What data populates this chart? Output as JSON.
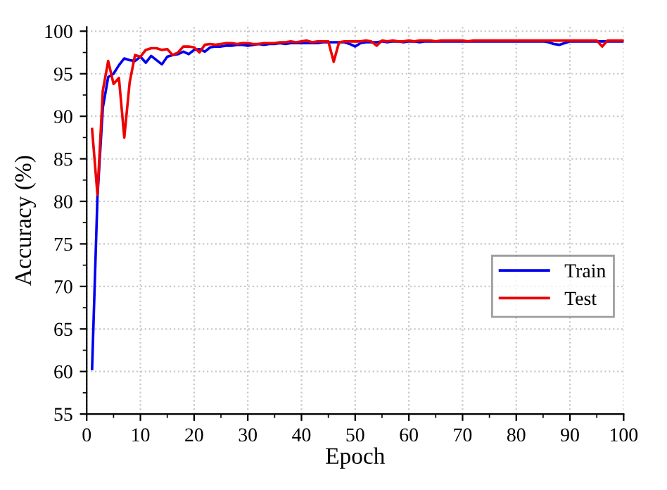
{
  "chart_data": {
    "type": "line",
    "xlabel": "Epoch",
    "ylabel": "Accuracy (%)",
    "x": [
      1,
      2,
      3,
      4,
      5,
      6,
      7,
      8,
      9,
      10,
      11,
      12,
      13,
      14,
      15,
      16,
      17,
      18,
      19,
      20,
      21,
      22,
      23,
      24,
      25,
      26,
      27,
      28,
      29,
      30,
      31,
      32,
      33,
      34,
      35,
      36,
      37,
      38,
      39,
      40,
      41,
      42,
      43,
      44,
      45,
      46,
      47,
      48,
      49,
      50,
      51,
      52,
      53,
      54,
      55,
      56,
      57,
      58,
      59,
      60,
      61,
      62,
      63,
      64,
      65,
      66,
      67,
      68,
      69,
      70,
      71,
      72,
      73,
      74,
      75,
      76,
      77,
      78,
      79,
      80,
      81,
      82,
      83,
      84,
      85,
      86,
      87,
      88,
      89,
      90,
      91,
      92,
      93,
      94,
      95,
      96,
      97,
      98,
      99,
      100
    ],
    "series": [
      {
        "name": "Train",
        "color": "#0000ee",
        "values": [
          60.3,
          80.5,
          91.0,
          94.6,
          95.0,
          96.0,
          96.8,
          96.6,
          96.5,
          97.0,
          96.3,
          97.1,
          96.6,
          96.1,
          97.0,
          97.2,
          97.3,
          97.6,
          97.3,
          97.8,
          97.9,
          97.6,
          98.1,
          98.2,
          98.2,
          98.3,
          98.3,
          98.4,
          98.4,
          98.3,
          98.4,
          98.5,
          98.4,
          98.5,
          98.5,
          98.6,
          98.5,
          98.6,
          98.6,
          98.6,
          98.6,
          98.6,
          98.6,
          98.7,
          98.7,
          98.7,
          98.7,
          98.7,
          98.5,
          98.2,
          98.6,
          98.7,
          98.7,
          98.7,
          98.8,
          98.7,
          98.8,
          98.8,
          98.7,
          98.8,
          98.8,
          98.7,
          98.8,
          98.8,
          98.8,
          98.8,
          98.8,
          98.8,
          98.8,
          98.8,
          98.8,
          98.8,
          98.8,
          98.8,
          98.8,
          98.8,
          98.8,
          98.8,
          98.8,
          98.8,
          98.8,
          98.8,
          98.8,
          98.8,
          98.8,
          98.7,
          98.5,
          98.4,
          98.6,
          98.8,
          98.8,
          98.8,
          98.8,
          98.8,
          98.8,
          98.8,
          98.8,
          98.8,
          98.8,
          98.8
        ]
      },
      {
        "name": "Test",
        "color": "#ee0000",
        "values": [
          88.5,
          80.8,
          93.0,
          96.5,
          93.8,
          94.5,
          87.5,
          94.0,
          97.2,
          97.0,
          97.8,
          98.0,
          98.0,
          97.8,
          97.9,
          97.2,
          97.5,
          98.2,
          98.2,
          98.1,
          97.5,
          98.4,
          98.5,
          98.4,
          98.5,
          98.6,
          98.6,
          98.5,
          98.6,
          98.6,
          98.5,
          98.5,
          98.6,
          98.6,
          98.6,
          98.7,
          98.7,
          98.8,
          98.7,
          98.8,
          98.9,
          98.7,
          98.8,
          98.8,
          98.8,
          96.4,
          98.7,
          98.8,
          98.8,
          98.8,
          98.8,
          98.9,
          98.8,
          98.3,
          98.9,
          98.8,
          98.9,
          98.8,
          98.8,
          98.9,
          98.8,
          98.9,
          98.9,
          98.9,
          98.8,
          98.9,
          98.9,
          98.9,
          98.9,
          98.9,
          98.8,
          98.9,
          98.9,
          98.9,
          98.9,
          98.9,
          98.9,
          98.9,
          98.9,
          98.9,
          98.9,
          98.9,
          98.9,
          98.9,
          98.9,
          98.9,
          98.9,
          98.9,
          98.9,
          98.9,
          98.9,
          98.9,
          98.9,
          98.9,
          98.9,
          98.2,
          98.9,
          98.9,
          98.9,
          98.9
        ]
      }
    ],
    "xlim": [
      0,
      100
    ],
    "xticks": [
      0,
      10,
      20,
      30,
      40,
      50,
      60,
      70,
      80,
      90,
      100
    ],
    "ylim": [
      55,
      100.5
    ],
    "yticks": [
      55,
      60,
      65,
      70,
      75,
      80,
      85,
      90,
      95,
      100
    ],
    "grid": true,
    "legend": "right",
    "line_style": "solid",
    "marker": "none"
  }
}
